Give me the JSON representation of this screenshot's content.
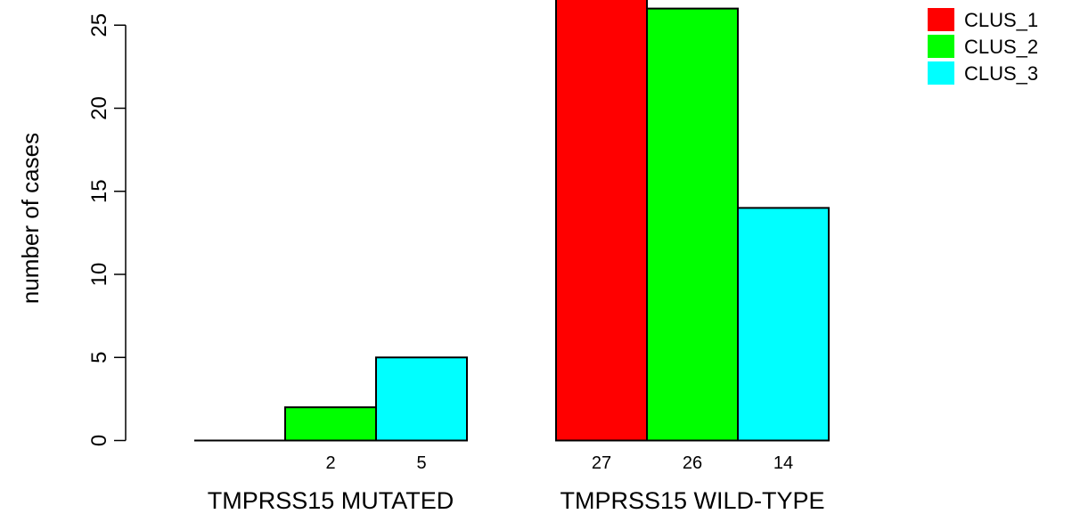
{
  "chart_data": {
    "type": "bar",
    "categories": [
      "TMPRSS15 MUTATED",
      "TMPRSS15 WILD-TYPE"
    ],
    "series": [
      {
        "name": "CLUS_1",
        "color": "#ff0000",
        "values": [
          0,
          27
        ],
        "labels": [
          "",
          "27"
        ]
      },
      {
        "name": "CLUS_2",
        "color": "#00ff00",
        "values": [
          2,
          26
        ],
        "labels": [
          "2",
          "26"
        ]
      },
      {
        "name": "CLUS_3",
        "color": "#00ffff",
        "values": [
          5,
          14
        ],
        "labels": [
          "5",
          "14"
        ]
      }
    ],
    "ylabel": "number of cases",
    "yticks": [
      0,
      5,
      10,
      15,
      20,
      25
    ],
    "ylim": [
      0,
      25.6
    ],
    "grid": false,
    "legend_position": "top-right"
  }
}
